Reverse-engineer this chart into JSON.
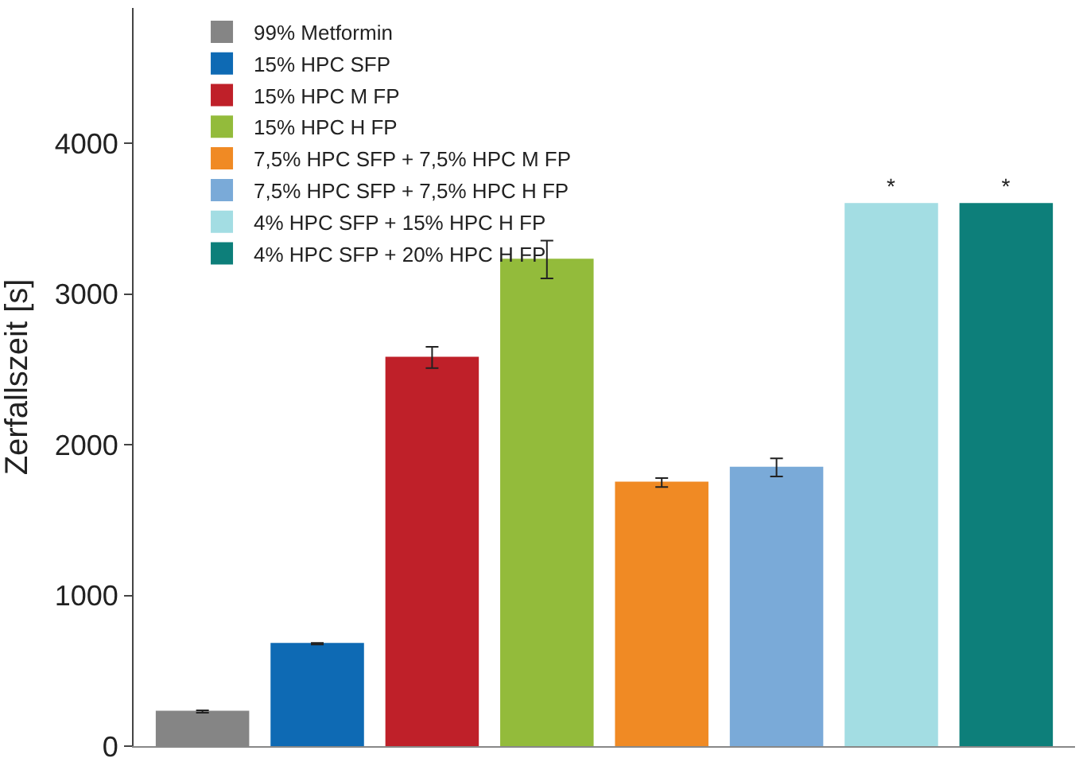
{
  "chart_data": {
    "type": "bar",
    "ylabel": "Zerfallszeit [s]",
    "categories": [
      null,
      null,
      null,
      null,
      null,
      null,
      null,
      null
    ],
    "series": [
      {
        "name": "99% Metformin",
        "color": "#858585",
        "values": [
          230,
          null,
          null,
          null,
          null,
          null,
          null,
          null
        ],
        "errors": [
          8,
          null,
          null,
          null,
          null,
          null,
          null,
          null
        ]
      },
      {
        "name": "15% HPC SFP",
        "color": "#0e6ab4",
        "values": [
          null,
          680,
          null,
          null,
          null,
          null,
          null,
          null
        ],
        "errors": [
          null,
          5,
          null,
          null,
          null,
          null,
          null,
          null
        ]
      },
      {
        "name": "15% HPC M FP",
        "color": "#bf2029",
        "values": [
          null,
          null,
          2580,
          null,
          null,
          null,
          null,
          null
        ],
        "errors": [
          null,
          null,
          70,
          null,
          null,
          null,
          null,
          null
        ]
      },
      {
        "name": "15% HPC H FP",
        "color": "#93bb3b",
        "values": [
          null,
          null,
          null,
          3230,
          null,
          null,
          null,
          null
        ],
        "errors": [
          null,
          null,
          null,
          125,
          null,
          null,
          null,
          null
        ]
      },
      {
        "name": "7,5% HPC SFP + 7,5% HPC M FP",
        "color": "#f08a24",
        "values": [
          null,
          null,
          null,
          null,
          1750,
          null,
          null,
          null
        ],
        "errors": [
          null,
          null,
          null,
          null,
          30,
          null,
          null,
          null
        ]
      },
      {
        "name": "7,5% HPC SFP + 7,5% HPC H FP",
        "color": "#7aaad8",
        "values": [
          null,
          null,
          null,
          null,
          null,
          1850,
          null,
          null
        ],
        "errors": [
          null,
          null,
          null,
          null,
          null,
          60,
          null,
          null
        ]
      },
      {
        "name": "4% HPC SFP + 15% HPC H FP",
        "color": "#a3dde3",
        "values": [
          null,
          null,
          null,
          null,
          null,
          null,
          3600,
          null
        ],
        "value_labels": [
          null,
          null,
          null,
          null,
          null,
          null,
          "*",
          null
        ]
      },
      {
        "name": "4% HPC SFP + 20% HPC H FP",
        "color": "#0d7f7a",
        "values": [
          null,
          null,
          null,
          null,
          null,
          null,
          null,
          3600
        ],
        "value_labels": [
          null,
          null,
          null,
          null,
          null,
          null,
          null,
          "*"
        ]
      }
    ],
    "ylim": [
      0,
      4900
    ],
    "yticks": [
      0,
      1000,
      2000,
      3000,
      4000
    ],
    "legend": "top left"
  }
}
